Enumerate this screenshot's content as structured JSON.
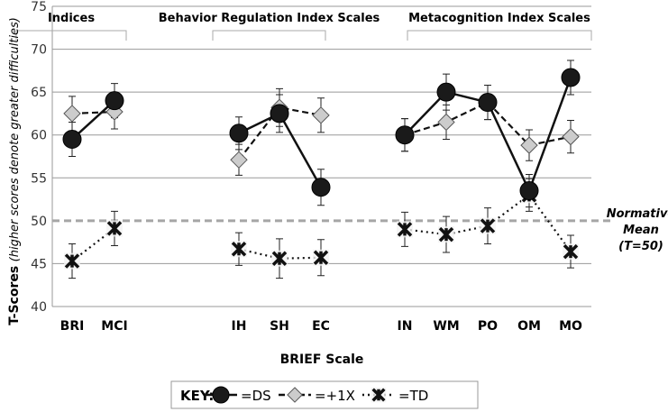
{
  "chart_data": {
    "type": "line",
    "ylabel_main": "T-Scores",
    "ylabel_note": "(higher scores denote greater difficulties)",
    "xlabel": "BRIEF Scale",
    "ylim": [
      40,
      75
    ],
    "yticks": [
      40,
      45,
      50,
      55,
      60,
      65,
      70,
      75
    ],
    "grid": true,
    "categories": [
      "BRI",
      "MCI",
      "IH",
      "SH",
      "EC",
      "IN",
      "WM",
      "PO",
      "OM",
      "MO"
    ],
    "groups": [
      {
        "label": "Indices",
        "members": [
          "BRI",
          "MCI"
        ]
      },
      {
        "label": "Behavior Regulation Index Scales",
        "members": [
          "IH",
          "SH",
          "EC"
        ]
      },
      {
        "label": "Metacognition Index Scales",
        "members": [
          "IN",
          "WM",
          "PO",
          "OM",
          "MO"
        ]
      }
    ],
    "reference_line": {
      "value": 50,
      "label_lines": [
        "Normative",
        "Mean",
        "(T=50)"
      ],
      "color": "#a6a6a6"
    },
    "series": [
      {
        "name": "DS",
        "marker": "circle",
        "line": "solid",
        "values": [
          59.5,
          64.0,
          60.2,
          62.5,
          53.9,
          60.0,
          65.0,
          63.8,
          53.5,
          66.7
        ],
        "error": [
          2.0,
          2.0,
          1.9,
          2.2,
          2.1,
          1.9,
          2.1,
          2.0,
          1.9,
          2.0
        ]
      },
      {
        "name": "+1X",
        "marker": "diamond",
        "line": "dashed",
        "values": [
          62.5,
          62.7,
          57.1,
          63.2,
          62.3,
          60.0,
          61.5,
          63.8,
          58.8,
          59.8
        ],
        "error": [
          2.0,
          2.0,
          1.8,
          2.2,
          2.0,
          1.9,
          2.0,
          2.0,
          1.8,
          1.9
        ]
      },
      {
        "name": "TD",
        "marker": "x",
        "line": "dotted",
        "values": [
          45.3,
          49.1,
          46.7,
          45.6,
          45.7,
          49.0,
          48.4,
          49.4,
          53.0,
          46.4
        ],
        "error": [
          2.0,
          2.0,
          1.9,
          2.3,
          2.1,
          2.0,
          2.1,
          2.1,
          1.9,
          1.9
        ]
      }
    ],
    "legend": {
      "title": "KEY:",
      "entries": [
        "=DS",
        "=+1X",
        "=TD"
      ],
      "placement": "bottom"
    }
  }
}
